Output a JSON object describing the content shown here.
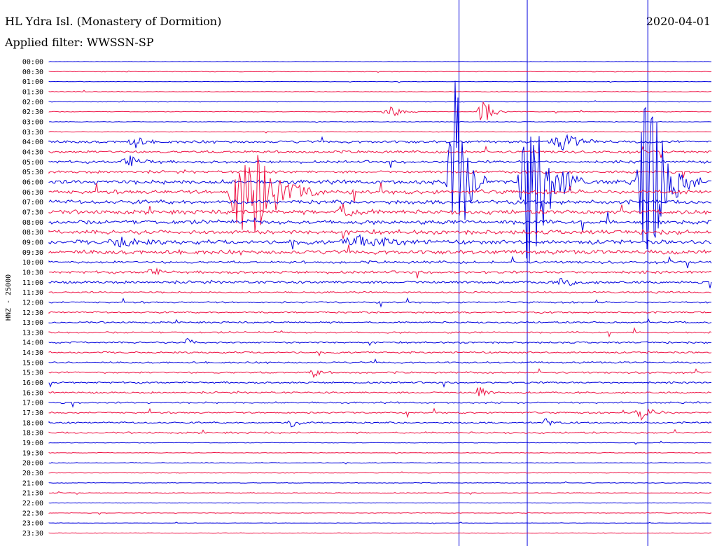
{
  "header": {
    "title": "HL Ydra Isl. (Monastery of Dormition)",
    "date": "2020-04-01",
    "filter": "Applied filter: WWSSN-SP"
  },
  "chart_data": {
    "type": "line",
    "title": "HL Ydra Isl. (Monastery of Dormition)",
    "ylabel": "HNZ - 25000",
    "rows": [
      "00:00",
      "00:30",
      "01:00",
      "01:30",
      "02:00",
      "02:30",
      "03:00",
      "03:30",
      "04:00",
      "04:30",
      "05:00",
      "05:30",
      "06:00",
      "06:30",
      "07:00",
      "07:30",
      "08:00",
      "08:30",
      "09:00",
      "09:30",
      "10:00",
      "10:30",
      "11:00",
      "11:30",
      "12:00",
      "12:30",
      "13:00",
      "13:30",
      "14:00",
      "14:30",
      "15:00",
      "15:30",
      "16:00",
      "16:30",
      "17:00",
      "17:30",
      "18:00",
      "18:30",
      "19:00",
      "19:30",
      "20:00",
      "20:30",
      "21:00",
      "21:30",
      "22:00",
      "22:30",
      "23:00",
      "23:30"
    ],
    "colors": {
      "even": "#0000dd",
      "odd": "#ee1144"
    },
    "markers_fraction": [
      0.619,
      0.722,
      0.904
    ],
    "events": [
      {
        "row": 12,
        "x": 0.612,
        "amp": 180,
        "width": 0.012
      },
      {
        "row": 12,
        "x": 0.727,
        "amp": 170,
        "width": 0.02
      },
      {
        "row": 12,
        "x": 0.905,
        "amp": 150,
        "width": 0.02
      },
      {
        "row": 13,
        "x": 0.298,
        "amp": 90,
        "width": 0.03
      },
      {
        "row": 5,
        "x": 0.512,
        "amp": 12,
        "width": 0.012
      },
      {
        "row": 5,
        "x": 0.655,
        "amp": 24,
        "width": 0.01
      },
      {
        "row": 8,
        "x": 0.128,
        "amp": 10,
        "width": 0.01
      },
      {
        "row": 8,
        "x": 0.774,
        "amp": 12,
        "width": 0.02
      },
      {
        "row": 10,
        "x": 0.118,
        "amp": 10,
        "width": 0.015
      },
      {
        "row": 15,
        "x": 0.443,
        "amp": 10,
        "width": 0.015
      },
      {
        "row": 18,
        "x": 0.108,
        "amp": 8,
        "width": 0.02
      },
      {
        "row": 18,
        "x": 0.468,
        "amp": 10,
        "width": 0.03
      },
      {
        "row": 21,
        "x": 0.153,
        "amp": 8,
        "width": 0.01
      },
      {
        "row": 22,
        "x": 0.775,
        "amp": 8,
        "width": 0.01
      },
      {
        "row": 28,
        "x": 0.208,
        "amp": 6,
        "width": 0.008
      },
      {
        "row": 31,
        "x": 0.398,
        "amp": 8,
        "width": 0.008
      },
      {
        "row": 33,
        "x": 0.649,
        "amp": 10,
        "width": 0.008
      },
      {
        "row": 35,
        "x": 0.896,
        "amp": 14,
        "width": 0.012
      },
      {
        "row": 36,
        "x": 0.368,
        "amp": 7,
        "width": 0.008
      },
      {
        "row": 36,
        "x": 0.75,
        "amp": 7,
        "width": 0.008
      }
    ]
  }
}
